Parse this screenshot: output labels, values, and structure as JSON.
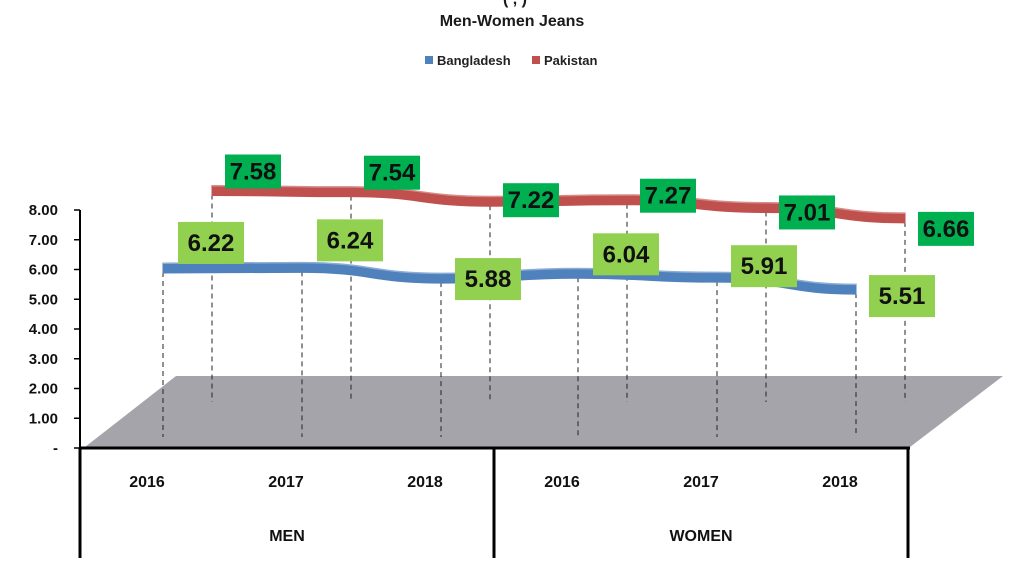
{
  "chart_data": {
    "type": "line",
    "title": "Men-Women Jeans",
    "title_partial": "(   ,   )",
    "y_ticks": [
      "8.00",
      "7.00",
      "6.00",
      "5.00",
      "4.00",
      "3.00",
      "2.00",
      "1.00",
      "-"
    ],
    "ylim": [
      0,
      8
    ],
    "categories": [
      "2016",
      "2017",
      "2018",
      "2016",
      "2017",
      "2018"
    ],
    "groups": [
      "MEN",
      "WOMEN"
    ],
    "series": [
      {
        "name": "Bangladesh",
        "values": [
          6.22,
          6.24,
          5.88,
          6.04,
          5.91,
          5.51
        ],
        "labels": [
          "6.22",
          "6.24",
          "5.88",
          "6.04",
          "5.91",
          "5.51"
        ],
        "color": "#4f81bd",
        "label_bg": "#92d050"
      },
      {
        "name": "Pakistan",
        "values": [
          7.58,
          7.54,
          7.22,
          7.27,
          7.01,
          6.66
        ],
        "labels": [
          "7.58",
          "7.54",
          "7.22",
          "7.27",
          "7.01",
          "6.66"
        ],
        "color": "#c0504d",
        "label_bg": "#00b050"
      }
    ],
    "legend_position": "top",
    "grid": false,
    "floor_color": "#a6a4ab"
  }
}
